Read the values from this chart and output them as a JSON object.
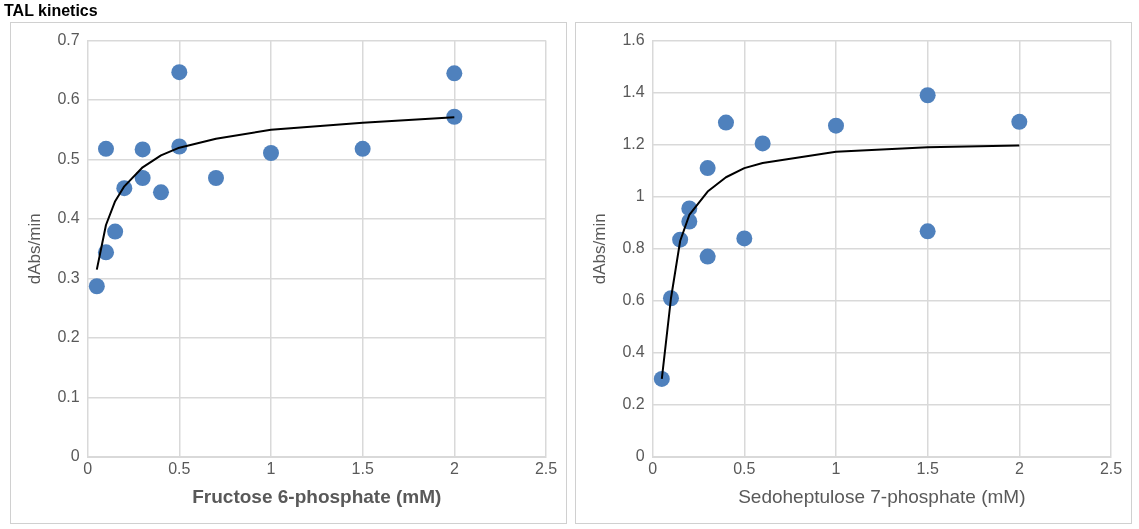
{
  "chart_data": [
    {
      "type": "scatter",
      "title": "TAL kinetics",
      "xlabel": "Fructose 6-phosphate (mM)",
      "ylabel": "dAbs/min",
      "xlim": [
        0,
        2.5
      ],
      "xticks": [
        0,
        0.5,
        1,
        1.5,
        2,
        2.5
      ],
      "ylim": [
        0,
        0.7
      ],
      "yticks": [
        0,
        0.1,
        0.2,
        0.3,
        0.4,
        0.5,
        0.6,
        0.7
      ],
      "grid": true,
      "legend": false,
      "marker": "circle",
      "series": [
        {
          "color": "#4f81bd",
          "x": [
            0.05,
            0.1,
            0.1,
            0.15,
            0.2,
            0.3,
            0.3,
            0.4,
            0.5,
            0.5,
            0.7,
            1,
            1.5,
            2,
            2
          ],
          "values": [
            0.287,
            0.344,
            0.518,
            0.379,
            0.452,
            0.469,
            0.517,
            0.445,
            0.522,
            0.647,
            0.469,
            0.511,
            0.518,
            0.572,
            0.645
          ]
        },
        {
          "type": "line",
          "color": "#000000",
          "marker": "none",
          "line_style": "solid",
          "x": [
            0.05,
            0.1,
            0.15,
            0.2,
            0.3,
            0.4,
            0.5,
            0.7,
            1,
            1.5,
            2
          ],
          "values": [
            0.315,
            0.39,
            0.43,
            0.455,
            0.487,
            0.507,
            0.52,
            0.535,
            0.55,
            0.562,
            0.571
          ]
        }
      ]
    },
    {
      "type": "scatter",
      "xlabel": "Sedoheptulose 7-phosphate (mM)",
      "ylabel": "dAbs/min",
      "xlim": [
        0,
        2.5
      ],
      "xticks": [
        0,
        0.5,
        1,
        1.5,
        2,
        2.5
      ],
      "ylim": [
        0,
        1.6
      ],
      "yticks": [
        0,
        0.2,
        0.4,
        0.6,
        0.8,
        1,
        1.2,
        1.4,
        1.6
      ],
      "grid": true,
      "legend": false,
      "marker": "circle",
      "series": [
        {
          "color": "#4f81bd",
          "x": [
            0.05,
            0.1,
            0.15,
            0.2,
            0.2,
            0.3,
            0.3,
            0.4,
            0.5,
            0.6,
            1,
            1.5,
            1.5,
            2
          ],
          "values": [
            0.3,
            0.61,
            0.835,
            0.905,
            0.955,
            0.77,
            1.11,
            1.285,
            0.84,
            1.205,
            1.273,
            1.39,
            0.867,
            1.288
          ]
        },
        {
          "type": "line",
          "color": "#000000",
          "marker": "none",
          "line_style": "solid",
          "x": [
            0.05,
            0.1,
            0.15,
            0.2,
            0.3,
            0.4,
            0.5,
            0.6,
            1,
            1.5,
            2
          ],
          "values": [
            0.3,
            0.61,
            0.83,
            0.93,
            1.02,
            1.075,
            1.11,
            1.13,
            1.173,
            1.19,
            1.197
          ]
        }
      ]
    }
  ]
}
